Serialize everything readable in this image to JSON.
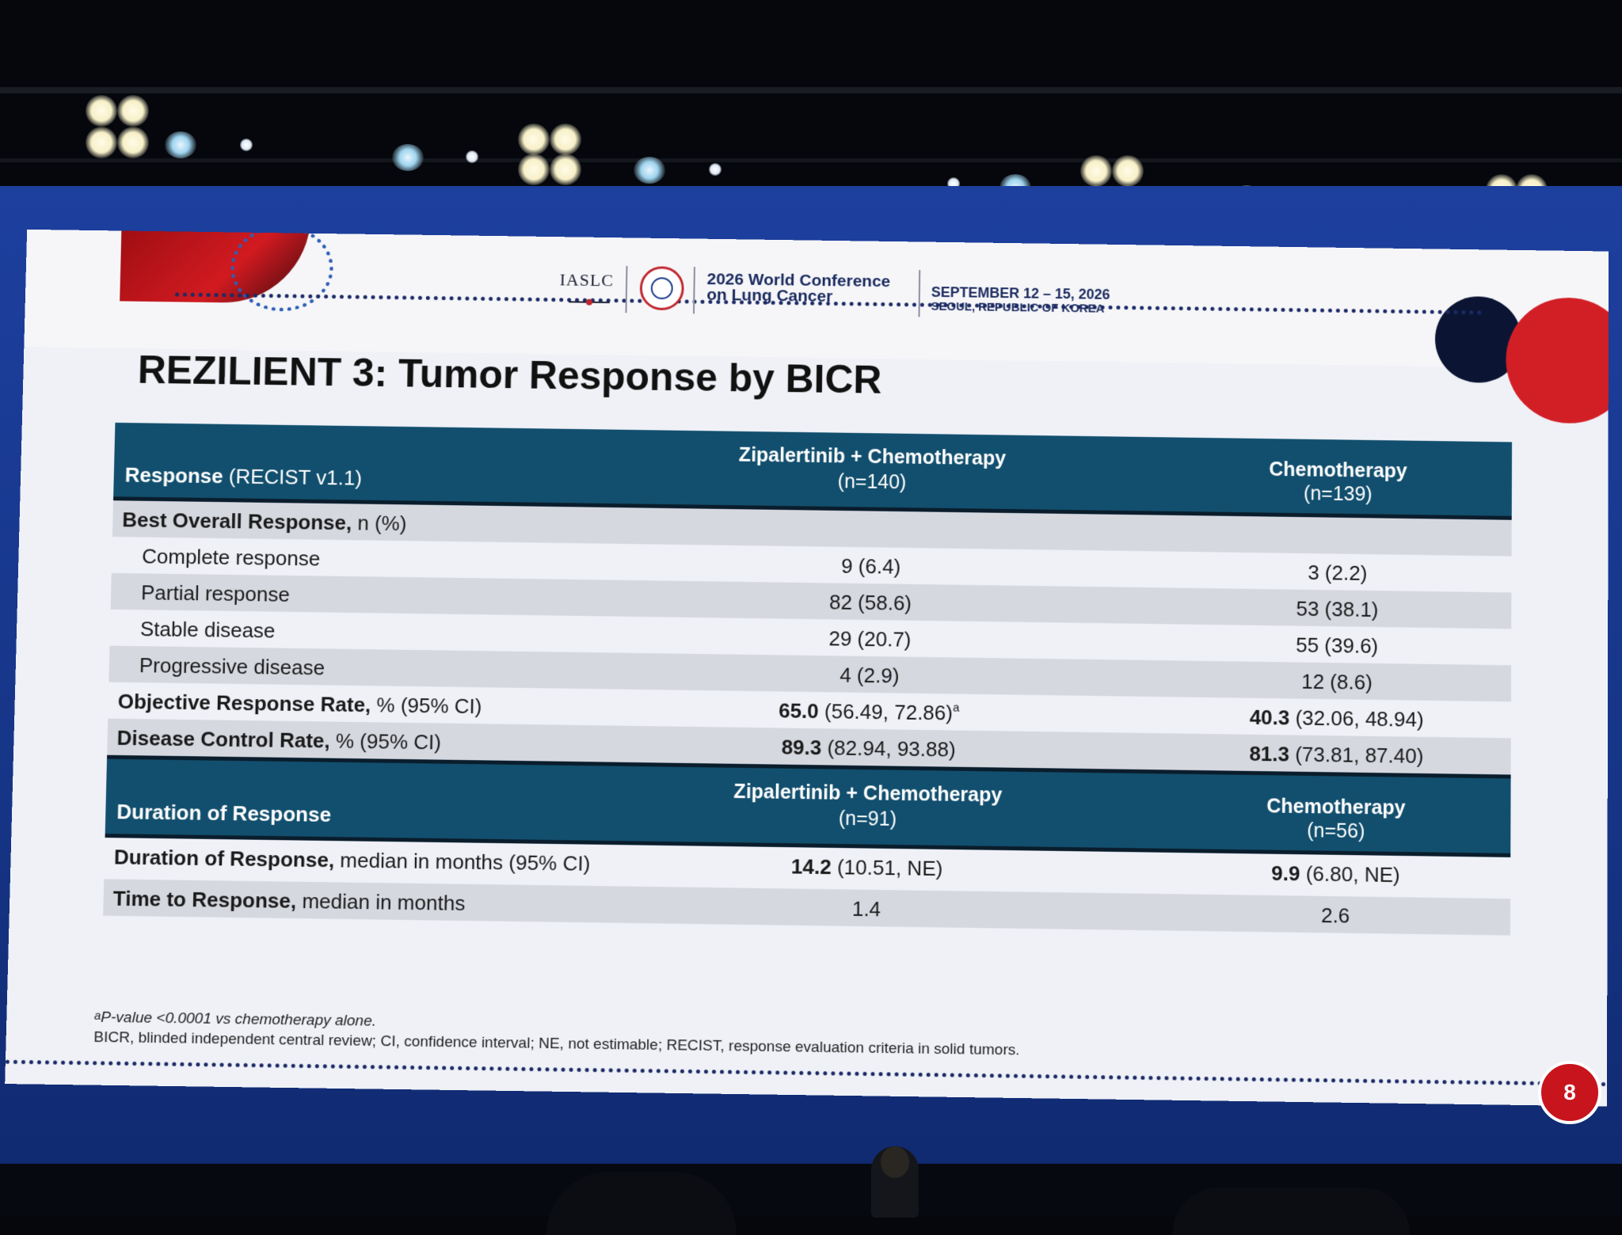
{
  "header": {
    "org_logo": "IASLC",
    "conference_name_line1": "2026 World Conference",
    "conference_name_line2": "on Lung Cancer",
    "dates": "SEPTEMBER 12 – 15, 2026",
    "location": "SEOUL, REPUBLIC OF KOREA"
  },
  "slide": {
    "title": "REZILIENT 3: Tumor Response by BICR",
    "page_number": "8"
  },
  "table1": {
    "col1_bold": "Response",
    "col1_rest": " (RECIST v1.1)",
    "col2_line1": "Zipalertinib + Chemotherapy",
    "col2_line2": "(n=140)",
    "col3_line1": "Chemotherapy",
    "col3_line2": "(n=139)",
    "rows": [
      {
        "label_bold": "Best Overall Response,",
        "label_rest": " n (%)",
        "v1_bold": "",
        "v1": "",
        "v2_bold": "",
        "v2": ""
      },
      {
        "label_bold": "",
        "label_rest": "Complete response",
        "v1_bold": "",
        "v1": "9 (6.4)",
        "v2_bold": "",
        "v2": "3 (2.2)"
      },
      {
        "label_bold": "",
        "label_rest": "Partial response",
        "v1_bold": "",
        "v1": "82 (58.6)",
        "v2_bold": "",
        "v2": "53 (38.1)"
      },
      {
        "label_bold": "",
        "label_rest": "Stable disease",
        "v1_bold": "",
        "v1": "29 (20.7)",
        "v2_bold": "",
        "v2": "55 (39.6)"
      },
      {
        "label_bold": "",
        "label_rest": "Progressive disease",
        "v1_bold": "",
        "v1": "4 (2.9)",
        "v2_bold": "",
        "v2": "12 (8.6)"
      },
      {
        "label_bold": "Objective Response Rate,",
        "label_rest": " % (95% CI)",
        "v1_bold": "65.0",
        "v1": " (56.49, 72.86)",
        "v1_sup": "a",
        "v2_bold": "40.3",
        "v2": " (32.06, 48.94)"
      },
      {
        "label_bold": "Disease Control Rate,",
        "label_rest": " % (95% CI)",
        "v1_bold": "89.3",
        "v1": " (82.94, 93.88)",
        "v2_bold": "81.3",
        "v2": " (73.81, 87.40)"
      }
    ]
  },
  "table2": {
    "col1": "Duration of Response",
    "col2_line1": "Zipalertinib + Chemotherapy",
    "col2_line2": "(n=91)",
    "col3_line1": "Chemotherapy",
    "col3_line2": "(n=56)",
    "rows": [
      {
        "label_bold": "Duration of Response,",
        "label_rest": " median in months (95% CI)",
        "v1_bold": "14.2",
        "v1": " (10.51, NE)",
        "v2_bold": "9.9",
        "v2": " (6.80, NE)"
      },
      {
        "label_bold": "Time to Response,",
        "label_rest": " median in months",
        "v1_bold": "",
        "v1": "1.4",
        "v2_bold": "",
        "v2": "2.6"
      }
    ]
  },
  "footnotes": {
    "sup": "a",
    "note1": "P-value <0.0001 vs chemotherapy alone.",
    "note2": "BICR, blinded independent central review; CI, confidence interval; NE, not estimable; RECIST, response evaluation criteria in solid tumors."
  },
  "colors": {
    "table_header": "#124f6e",
    "slide_bg": "#eff1f7",
    "frame_blue": "#1d3f9e",
    "accent_red": "#c8141d"
  }
}
